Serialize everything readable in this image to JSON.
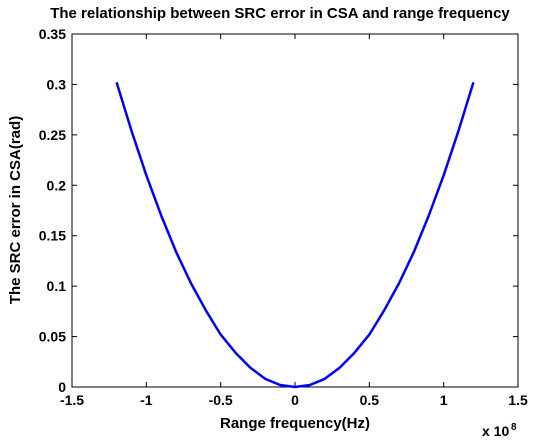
{
  "chart_data": {
    "type": "line",
    "title": "The relationship between SRC error in CSA and range frequency",
    "xlabel": "Range frequency(Hz)",
    "ylabel": "The SRC error in CSA(rad)",
    "xlim": [
      -1.5,
      1.5
    ],
    "ylim": [
      0,
      0.35
    ],
    "x_multiplier": "x 10",
    "x_multiplier_exponent": "8",
    "x_ticks": [
      "-1.5",
      "-1",
      "-0.5",
      "0",
      "0.5",
      "1",
      "1.5"
    ],
    "y_ticks": [
      "0",
      "0.05",
      "0.1",
      "0.15",
      "0.2",
      "0.25",
      "0.3",
      "0.35"
    ],
    "grid": false,
    "series": [
      {
        "color": "#0000ff",
        "x": [
          -1.2,
          -1.1,
          -1.0,
          -0.9,
          -0.8,
          -0.7,
          -0.6,
          -0.5,
          -0.4,
          -0.3,
          -0.2,
          -0.1,
          0,
          0.1,
          0.2,
          0.3,
          0.4,
          0.5,
          0.6,
          0.7,
          0.8,
          0.9,
          1.0,
          1.1,
          1.2
        ],
        "y": [
          0.302,
          0.254,
          0.21,
          0.17,
          0.134,
          0.103,
          0.076,
          0.052,
          0.034,
          0.019,
          0.008,
          0.002,
          0.0,
          0.002,
          0.008,
          0.019,
          0.034,
          0.052,
          0.076,
          0.103,
          0.134,
          0.17,
          0.21,
          0.254,
          0.302
        ]
      }
    ]
  }
}
